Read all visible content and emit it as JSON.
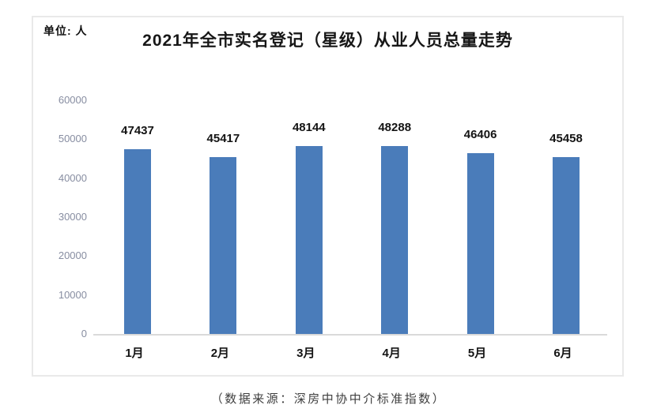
{
  "chart": {
    "unit_label": "单位: 人",
    "title": "2021年全市实名登记（星级）从业人员总量走势",
    "caption": "（数据来源：深房中协中介标准指数）"
  },
  "chart_data": {
    "type": "bar",
    "title": "2021年全市实名登记（星级）从业人员总量走势",
    "categories": [
      "1月",
      "2月",
      "3月",
      "4月",
      "5月",
      "6月"
    ],
    "values": [
      47437,
      45417,
      48144,
      48288,
      46406,
      45458
    ],
    "xlabel": "",
    "ylabel": "单位: 人",
    "ylim": [
      0,
      60000
    ],
    "yticks": [
      0,
      10000,
      20000,
      30000,
      40000,
      50000,
      60000
    ],
    "grid": false,
    "legend": "none",
    "data_labels": true,
    "bar_color": "#4a7cba",
    "tick_label_color": "#878da1",
    "text_color": "#141414"
  }
}
